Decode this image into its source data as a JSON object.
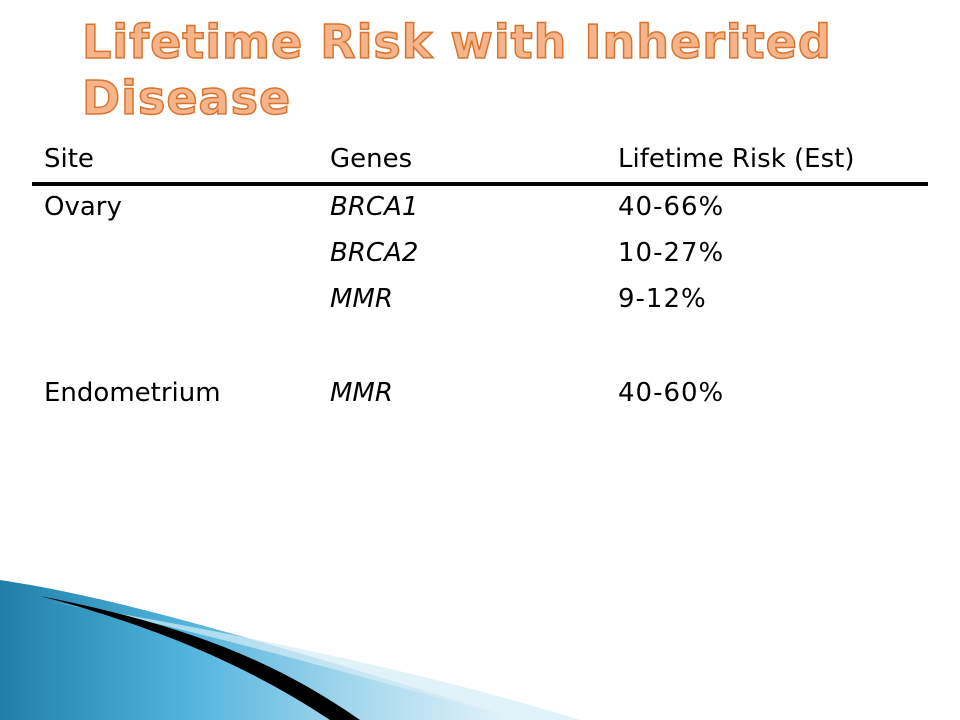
{
  "slide": {
    "title": "Lifetime Risk with Inherited Disease"
  },
  "table": {
    "headers": {
      "site": "Site",
      "genes": "Genes",
      "risk": "Lifetime Risk (Est)"
    },
    "rows": [
      {
        "site": "Ovary",
        "gene": "BRCA1",
        "risk": "40-66%"
      },
      {
        "site": "",
        "gene": "BRCA2",
        "risk": "10-27%"
      },
      {
        "site": "",
        "gene": "MMR",
        "risk": "9-12%"
      },
      {
        "site": "Endometrium",
        "gene": "MMR",
        "risk": "40-60%"
      }
    ]
  },
  "colors": {
    "title_fill": "#f5b48a",
    "title_outline": "#d9742f",
    "decor_blue": "#3aa0c8",
    "decor_dark": "#000000"
  }
}
